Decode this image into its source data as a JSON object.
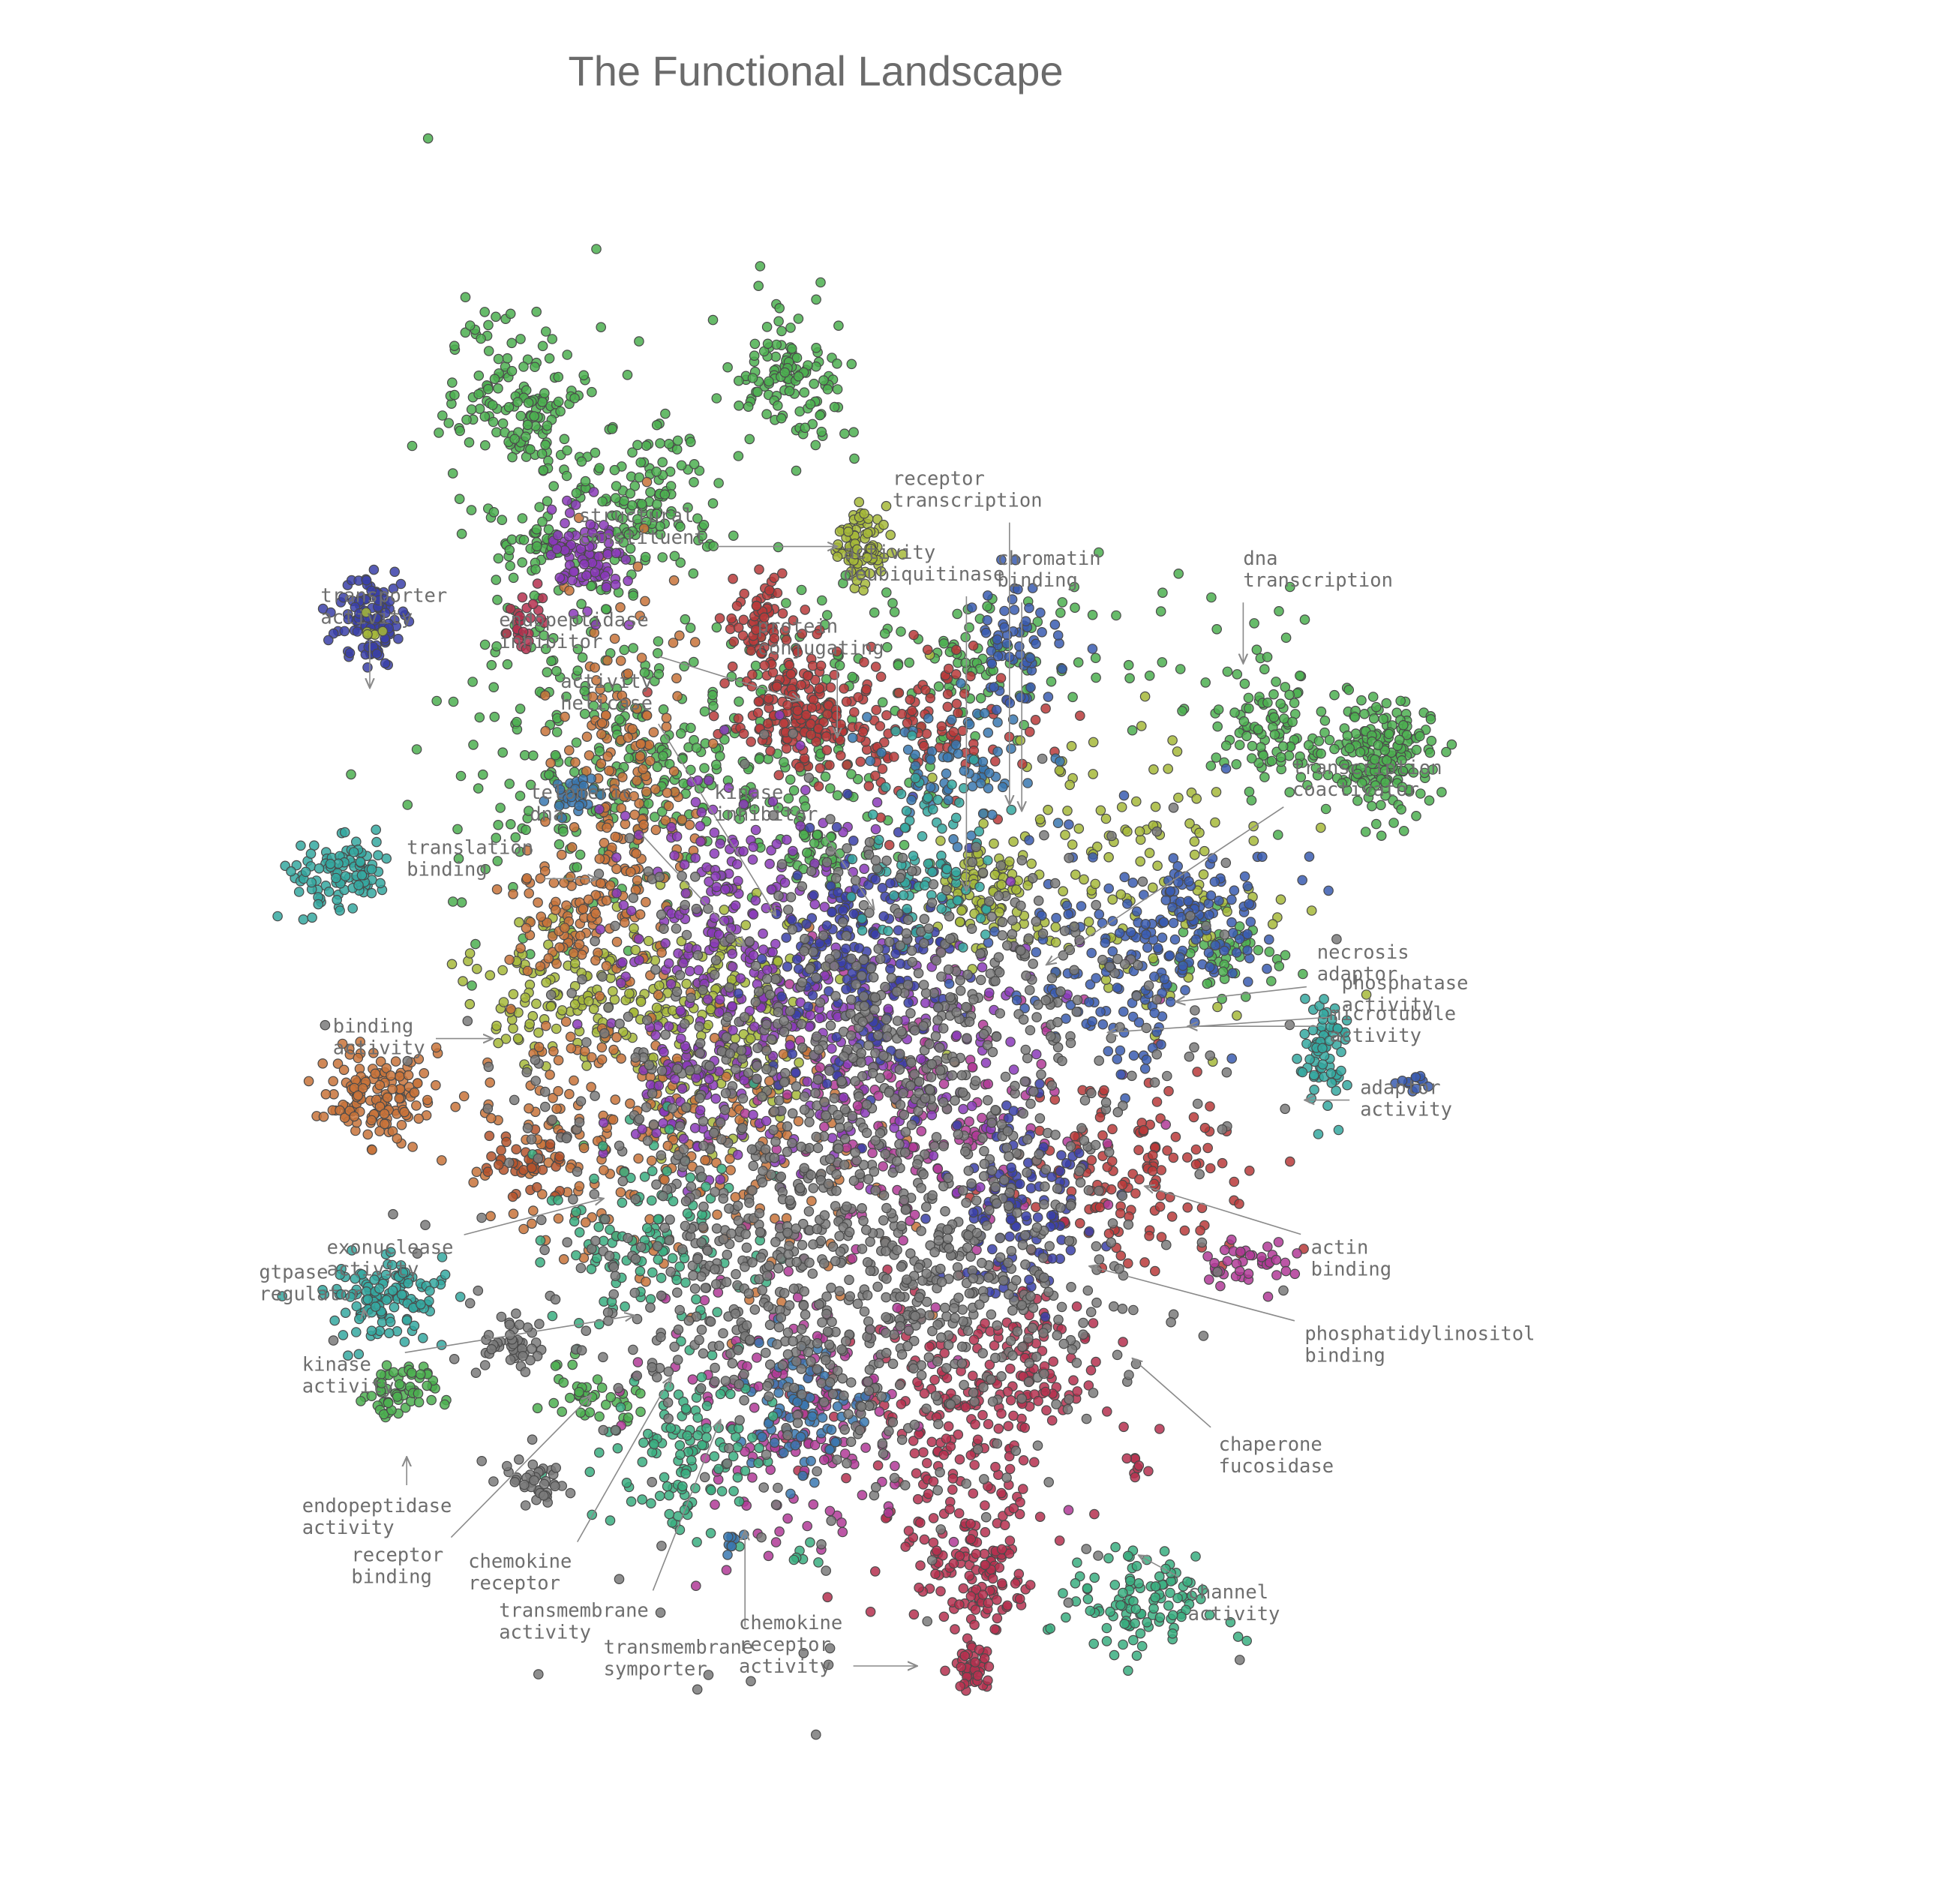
{
  "chart_data": {
    "type": "scatter",
    "title": "The Functional Landscape",
    "xlabel": "",
    "ylabel": "",
    "grid": false,
    "legend": "none",
    "marker": {
      "edge_color": "#4a4a4a",
      "opacity": 0.85
    },
    "palette": {
      "green": "#4caf50",
      "olive": "#a6b83a",
      "orange": "#c8733a",
      "brown": "#b5532c",
      "red": "#b83a3a",
      "crimson": "#b5304f",
      "magenta": "#b03a96",
      "purple": "#8a3ab8",
      "navy": "#3a3fa8",
      "blue": "#3a5cb0",
      "steel": "#3a78b0",
      "teal": "#35a8a0",
      "sea": "#3aae80",
      "gray": "#7a7a7a"
    },
    "clusters": [
      {
        "x": 0.05,
        "y": 0.62,
        "sx": 0.025,
        "sy": 0.035,
        "n": 90,
        "color": "olive"
      },
      {
        "x": -0.42,
        "y": 0.42,
        "sx": 0.12,
        "sy": 0.28,
        "n": 200,
        "color": "green"
      },
      {
        "x": -0.3,
        "y": 0.69,
        "sx": 0.06,
        "sy": 0.06,
        "n": 110,
        "color": "green"
      },
      {
        "x": -0.48,
        "y": 0.62,
        "sx": 0.03,
        "sy": 0.025,
        "n": 40,
        "color": "green"
      },
      {
        "x": -0.2,
        "y": 0.25,
        "sx": 0.2,
        "sy": 0.08,
        "n": 260,
        "color": "green"
      },
      {
        "x": -0.07,
        "y": 0.9,
        "sx": 0.05,
        "sy": 0.06,
        "n": 120,
        "color": "green"
      },
      {
        "x": -0.02,
        "y": 0.12,
        "sx": 0.02,
        "sy": 0.02,
        "n": 25,
        "color": "green"
      },
      {
        "x": -0.5,
        "y": 0.85,
        "sx": 0.06,
        "sy": 0.07,
        "n": 140,
        "color": "green"
      },
      {
        "x": 0.25,
        "y": 0.45,
        "sx": 0.22,
        "sy": 0.06,
        "n": 130,
        "color": "green"
      },
      {
        "x": 0.72,
        "y": 0.32,
        "sx": 0.06,
        "sy": 0.06,
        "n": 110,
        "color": "green"
      },
      {
        "x": 0.9,
        "y": 0.28,
        "sx": 0.04,
        "sy": 0.05,
        "n": 180,
        "color": "green"
      },
      {
        "x": 0.65,
        "y": -0.05,
        "sx": 0.05,
        "sy": 0.03,
        "n": 50,
        "color": "green"
      },
      {
        "x": -0.7,
        "y": -0.75,
        "sx": 0.03,
        "sy": 0.02,
        "n": 60,
        "color": "green"
      },
      {
        "x": -0.39,
        "y": -0.76,
        "sx": 0.04,
        "sy": 0.025,
        "n": 40,
        "color": "green"
      },
      {
        "x": -0.43,
        "y": -0.1,
        "sx": 0.08,
        "sy": 0.06,
        "n": 140,
        "color": "olive"
      },
      {
        "x": -0.18,
        "y": -0.15,
        "sx": 0.08,
        "sy": 0.1,
        "n": 200,
        "color": "olive"
      },
      {
        "x": 0.25,
        "y": 0.06,
        "sx": 0.05,
        "sy": 0.04,
        "n": 80,
        "color": "olive"
      },
      {
        "x": 0.45,
        "y": 0.1,
        "sx": 0.15,
        "sy": 0.12,
        "n": 150,
        "color": "olive"
      },
      {
        "x": -0.34,
        "y": 0.21,
        "sx": 0.06,
        "sy": 0.17,
        "n": 190,
        "color": "orange"
      },
      {
        "x": -0.42,
        "y": 0.02,
        "sx": 0.05,
        "sy": 0.05,
        "n": 80,
        "color": "orange"
      },
      {
        "x": -0.74,
        "y": -0.28,
        "sx": 0.045,
        "sy": 0.035,
        "n": 140,
        "color": "orange"
      },
      {
        "x": -0.4,
        "y": -0.34,
        "sx": 0.1,
        "sy": 0.1,
        "n": 130,
        "color": "orange"
      },
      {
        "x": -0.12,
        "y": -0.34,
        "sx": 0.12,
        "sy": 0.12,
        "n": 140,
        "color": "orange"
      },
      {
        "x": -0.5,
        "y": -0.38,
        "sx": 0.03,
        "sy": 0.03,
        "n": 40,
        "color": "brown"
      },
      {
        "x": -0.05,
        "y": 0.36,
        "sx": 0.04,
        "sy": 0.05,
        "n": 100,
        "color": "red"
      },
      {
        "x": -0.12,
        "y": 0.5,
        "sx": 0.03,
        "sy": 0.04,
        "n": 70,
        "color": "red"
      },
      {
        "x": 0.15,
        "y": 0.32,
        "sx": 0.1,
        "sy": 0.06,
        "n": 120,
        "color": "red"
      },
      {
        "x": 0.48,
        "y": -0.4,
        "sx": 0.1,
        "sy": 0.08,
        "n": 140,
        "color": "red"
      },
      {
        "x": -0.05,
        "y": 0.34,
        "sx": 0.06,
        "sy": 0.04,
        "n": 70,
        "color": "red"
      },
      {
        "x": 0.3,
        "y": -0.72,
        "sx": 0.08,
        "sy": 0.06,
        "n": 100,
        "color": "crimson"
      },
      {
        "x": 0.23,
        "y": -1.05,
        "sx": 0.04,
        "sy": 0.05,
        "n": 110,
        "color": "crimson"
      },
      {
        "x": 0.18,
        "y": -0.82,
        "sx": 0.1,
        "sy": 0.12,
        "n": 180,
        "color": "crimson"
      },
      {
        "x": -0.5,
        "y": 0.5,
        "sx": 0.02,
        "sy": 0.02,
        "n": 25,
        "color": "crimson"
      },
      {
        "x": -0.05,
        "y": -0.78,
        "sx": 0.1,
        "sy": 0.12,
        "n": 180,
        "color": "magenta"
      },
      {
        "x": 0.15,
        "y": -0.3,
        "sx": 0.12,
        "sy": 0.12,
        "n": 160,
        "color": "magenta"
      },
      {
        "x": 0.68,
        "y": -0.55,
        "sx": 0.04,
        "sy": 0.02,
        "n": 40,
        "color": "magenta"
      },
      {
        "x": -0.4,
        "y": 0.6,
        "sx": 0.03,
        "sy": 0.04,
        "n": 90,
        "color": "purple"
      },
      {
        "x": -0.15,
        "y": 0.03,
        "sx": 0.1,
        "sy": 0.1,
        "n": 200,
        "color": "purple"
      },
      {
        "x": -0.22,
        "y": -0.25,
        "sx": 0.06,
        "sy": 0.08,
        "n": 90,
        "color": "purple"
      },
      {
        "x": 0.06,
        "y": -0.2,
        "sx": 0.15,
        "sy": 0.1,
        "n": 220,
        "color": "purple"
      },
      {
        "x": -0.75,
        "y": 0.5,
        "sx": 0.03,
        "sy": 0.035,
        "n": 110,
        "color": "navy"
      },
      {
        "x": 0.05,
        "y": -0.05,
        "sx": 0.07,
        "sy": 0.1,
        "n": 190,
        "color": "navy"
      },
      {
        "x": 0.3,
        "y": -0.45,
        "sx": 0.06,
        "sy": 0.08,
        "n": 120,
        "color": "navy"
      },
      {
        "x": 0.5,
        "y": -0.05,
        "sx": 0.1,
        "sy": 0.1,
        "n": 140,
        "color": "blue"
      },
      {
        "x": 0.6,
        "y": 0.02,
        "sx": 0.05,
        "sy": 0.05,
        "n": 80,
        "color": "blue"
      },
      {
        "x": 0.3,
        "y": 0.45,
        "sx": 0.04,
        "sy": 0.05,
        "n": 60,
        "color": "blue"
      },
      {
        "x": 0.95,
        "y": -0.25,
        "sx": 0.01,
        "sy": 0.01,
        "n": 12,
        "color": "blue"
      },
      {
        "x": -0.05,
        "y": -0.78,
        "sx": 0.06,
        "sy": 0.06,
        "n": 80,
        "color": "steel"
      },
      {
        "x": 0.2,
        "y": 0.27,
        "sx": 0.06,
        "sy": 0.05,
        "n": 70,
        "color": "steel"
      },
      {
        "x": -0.42,
        "y": 0.22,
        "sx": 0.02,
        "sy": 0.02,
        "n": 30,
        "color": "steel"
      },
      {
        "x": -0.8,
        "y": 0.09,
        "sx": 0.04,
        "sy": 0.03,
        "n": 100,
        "color": "teal"
      },
      {
        "x": -0.72,
        "y": -0.6,
        "sx": 0.045,
        "sy": 0.035,
        "n": 130,
        "color": "teal"
      },
      {
        "x": 0.8,
        "y": -0.2,
        "sx": 0.02,
        "sy": 0.05,
        "n": 70,
        "color": "teal"
      },
      {
        "x": 0.15,
        "y": 0.12,
        "sx": 0.06,
        "sy": 0.08,
        "n": 90,
        "color": "teal"
      },
      {
        "x": -0.25,
        "y": -0.85,
        "sx": 0.07,
        "sy": 0.06,
        "n": 120,
        "color": "sea"
      },
      {
        "x": 0.51,
        "y": -1.1,
        "sx": 0.06,
        "sy": 0.04,
        "n": 110,
        "color": "sea"
      },
      {
        "x": -0.3,
        "y": -0.5,
        "sx": 0.08,
        "sy": 0.08,
        "n": 120,
        "color": "sea"
      },
      {
        "x": 0.0,
        "y": -0.45,
        "sx": 0.25,
        "sy": 0.25,
        "n": 900,
        "color": "gray"
      },
      {
        "x": 0.15,
        "y": -0.15,
        "sx": 0.2,
        "sy": 0.15,
        "n": 300,
        "color": "gray"
      },
      {
        "x": -0.52,
        "y": -0.67,
        "sx": 0.03,
        "sy": 0.02,
        "n": 45,
        "color": "gray"
      },
      {
        "x": -0.48,
        "y": -0.9,
        "sx": 0.03,
        "sy": 0.02,
        "n": 40,
        "color": "gray"
      },
      {
        "x": 0.1,
        "y": -0.6,
        "sx": 0.2,
        "sy": 0.1,
        "n": 250,
        "color": "gray"
      }
    ],
    "annotations": [
      {
        "lines": [
          "structural",
          "constituent"
        ],
        "anchor": "start",
        "tx": -0.41,
        "ty": 0.66,
        "ax": 0.01,
        "ay": 0.62
      },
      {
        "lines": [
          "receptor",
          "transcription"
        ],
        "anchor": "start",
        "tx": 0.1,
        "ty": 0.72,
        "ax": 0.29,
        "ay": 0.2
      },
      {
        "lines": [
          "activity",
          "deubiquitinase"
        ],
        "anchor": "start",
        "tx": 0.02,
        "ty": 0.6,
        "ax": 0.22,
        "ay": 0.06
      },
      {
        "lines": [
          "chromatin",
          "binding"
        ],
        "anchor": "start",
        "tx": 0.27,
        "ty": 0.59,
        "ax": 0.31,
        "ay": 0.19
      },
      {
        "lines": [
          "dna",
          "transcription"
        ],
        "anchor": "start",
        "tx": 0.67,
        "ty": 0.59,
        "ax": 0.67,
        "ay": 0.43
      },
      {
        "lines": [
          "transporter",
          "activity"
        ],
        "anchor": "start",
        "tx": -0.83,
        "ty": 0.53,
        "ax": -0.75,
        "ay": 0.39
      },
      {
        "lines": [
          "endopeptidase",
          "inhibitor"
        ],
        "anchor": "start",
        "tx": -0.54,
        "ty": 0.49,
        "ax": -0.05,
        "ay": 0.37
      },
      {
        "lines": [
          "protein",
          "conjugating"
        ],
        "anchor": "start",
        "tx": -0.12,
        "ty": 0.48,
        "ax": 0.01,
        "ay": 0.31
      },
      {
        "lines": [
          "activity",
          "helicase"
        ],
        "anchor": "start",
        "tx": -0.44,
        "ty": 0.39,
        "ax": -0.09,
        "ay": 0.02
      },
      {
        "lines": [
          "transcription",
          "coactivator"
        ],
        "anchor": "start",
        "tx": 0.75,
        "ty": 0.25,
        "ax": 0.35,
        "ay": -0.06
      },
      {
        "lines": [
          "telomeric",
          "dna"
        ],
        "anchor": "start",
        "tx": -0.49,
        "ty": 0.21,
        "ax": -0.14,
        "ay": -0.03
      },
      {
        "lines": [
          "kinase",
          "inhibitor"
        ],
        "anchor": "start",
        "tx": -0.19,
        "ty": 0.21,
        "ax": 0.07,
        "ay": 0.03
      },
      {
        "lines": [
          "translation",
          "binding"
        ],
        "anchor": "start",
        "tx": -0.69,
        "ty": 0.12,
        "ax": -0.38,
        "ay": 0.08
      },
      {
        "lines": [
          "necrosis",
          "adaptor"
        ],
        "anchor": "start",
        "tx": 0.79,
        "ty": -0.05,
        "ax": 0.56,
        "ay": -0.12
      },
      {
        "lines": [
          "phosphatase",
          "activity"
        ],
        "anchor": "start",
        "tx": 0.83,
        "ty": -0.1,
        "ax": 0.45,
        "ay": -0.17
      },
      {
        "lines": [
          "microtubule",
          "activity"
        ],
        "anchor": "start",
        "tx": 0.81,
        "ty": -0.15,
        "ax": 0.58,
        "ay": -0.16
      },
      {
        "lines": [
          "binding",
          "activity"
        ],
        "anchor": "start",
        "tx": -0.81,
        "ty": -0.17,
        "ax": -0.55,
        "ay": -0.18
      },
      {
        "lines": [
          "adaptor",
          "activity"
        ],
        "anchor": "start",
        "tx": 0.86,
        "ty": -0.27,
        "ax": 0.77,
        "ay": -0.28
      },
      {
        "lines": [
          "exonuclease",
          "activity"
        ],
        "anchor": "start",
        "tx": -0.82,
        "ty": -0.53,
        "ax": -0.37,
        "ay": -0.44
      },
      {
        "lines": [
          "actin",
          "binding"
        ],
        "anchor": "start",
        "tx": 0.78,
        "ty": -0.53,
        "ax": 0.51,
        "ay": -0.42
      },
      {
        "lines": [
          "gtpase",
          "regulator"
        ],
        "anchor": "start",
        "tx": -0.93,
        "ty": -0.57,
        "ax": -0.76,
        "ay": -0.62
      },
      {
        "lines": [
          "phosphatidylinositol",
          "binding"
        ],
        "anchor": "start",
        "tx": 0.77,
        "ty": -0.67,
        "ax": 0.42,
        "ay": -0.55
      },
      {
        "lines": [
          "kinase",
          "activity"
        ],
        "anchor": "start",
        "tx": -0.86,
        "ty": -0.72,
        "ax": -0.32,
        "ay": -0.63
      },
      {
        "lines": [
          "chaperone",
          "fucosidase"
        ],
        "anchor": "start",
        "tx": 0.63,
        "ty": -0.85,
        "ax": 0.49,
        "ay": -0.7
      },
      {
        "lines": [
          "endopeptidase",
          "activity"
        ],
        "anchor": "start",
        "tx": -0.86,
        "ty": -0.95,
        "ax": -0.69,
        "ay": -0.86
      },
      {
        "lines": [
          "receptor",
          "binding"
        ],
        "anchor": "start",
        "tx": -0.78,
        "ty": -1.03,
        "ax": -0.39,
        "ay": -0.76
      },
      {
        "lines": [
          "chemokine",
          "receptor"
        ],
        "anchor": "start",
        "tx": -0.59,
        "ty": -1.04,
        "ax": -0.26,
        "ay": -0.73
      },
      {
        "lines": [
          "transmembrane",
          "activity"
        ],
        "anchor": "start",
        "tx": -0.54,
        "ty": -1.12,
        "ax": -0.18,
        "ay": -0.8
      },
      {
        "lines": [
          "channel",
          "activity"
        ],
        "anchor": "start",
        "tx": 0.58,
        "ty": -1.09,
        "ax": 0.5,
        "ay": -1.02
      },
      {
        "lines": [
          "transmembrane",
          "symporter"
        ],
        "anchor": "start",
        "tx": -0.37,
        "ty": -1.18,
        "ax": -0.14,
        "ay": -0.98
      },
      {
        "lines": [
          "chemokine",
          "receptor",
          "activity"
        ],
        "anchor": "start",
        "tx": -0.15,
        "ty": -1.14,
        "ax": 0.14,
        "ay": -1.2
      }
    ],
    "outliers": [
      {
        "x": 0.23,
        "y": -1.2,
        "sx": 0.015,
        "sy": 0.02,
        "n": 40,
        "color": "crimson"
      },
      {
        "x": -0.75,
        "y": 0.48,
        "sx": 0.01,
        "sy": 0.01,
        "n": 6,
        "color": "olive"
      },
      {
        "x": 0.5,
        "y": -0.88,
        "sx": 0.01,
        "sy": 0.01,
        "n": 8,
        "color": "crimson"
      },
      {
        "x": -0.16,
        "y": -1.0,
        "sx": 0.01,
        "sy": 0.01,
        "n": 10,
        "color": "steel"
      },
      {
        "x": -0.05,
        "y": -1.02,
        "sx": 0.01,
        "sy": 0.01,
        "n": 6,
        "color": "sea"
      }
    ]
  }
}
